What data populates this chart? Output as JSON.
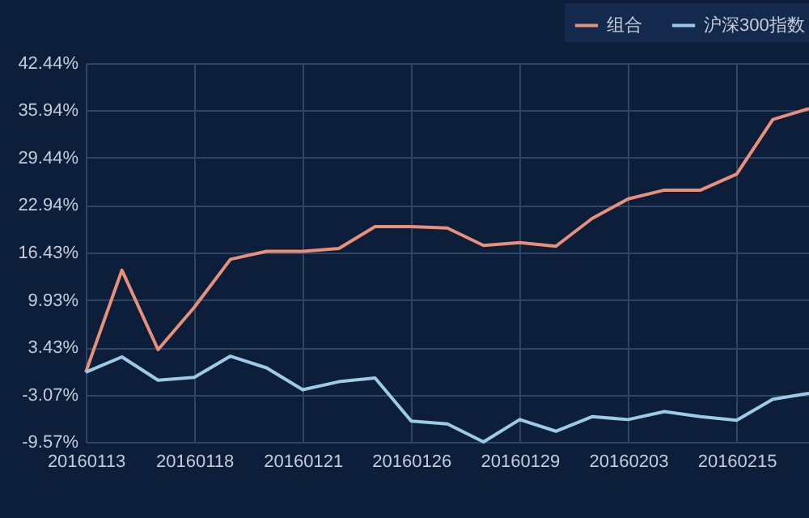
{
  "chart_data": {
    "type": "line",
    "categories": [
      "20160113",
      null,
      null,
      "20160118",
      null,
      null,
      "20160121",
      null,
      null,
      "20160126",
      null,
      null,
      "20160129",
      null,
      null,
      "20160203",
      null,
      null,
      "20160215",
      null,
      null
    ],
    "series": [
      {
        "name": "组合",
        "color": "#e8907a",
        "values": [
          0,
          14.0,
          3.1,
          8.9,
          15.5,
          16.6,
          16.6,
          17.0,
          20.0,
          20.0,
          19.8,
          17.4,
          17.8,
          17.3,
          21.1,
          23.8,
          25.0,
          25.0,
          27.2,
          34.7,
          36.2
        ]
      },
      {
        "name": "沪深300指数",
        "color": "#9ccbe8",
        "values": [
          0,
          2.1,
          -1.1,
          -0.7,
          2.2,
          0.6,
          -2.4,
          -1.3,
          -0.8,
          -6.7,
          -7.1,
          -9.57,
          -6.5,
          -8.1,
          -6.1,
          -6.5,
          -5.4,
          -6.1,
          -6.6,
          -3.7,
          -2.9
        ]
      }
    ],
    "ylim": [
      -9.57,
      42.44
    ],
    "yticks": [
      {
        "value": -9.57,
        "label": "-9.57%"
      },
      {
        "value": -3.07,
        "label": "-3.07%"
      },
      {
        "value": 3.43,
        "label": "3.43%"
      },
      {
        "value": 9.93,
        "label": "9.93%"
      },
      {
        "value": 16.43,
        "label": "16.43%"
      },
      {
        "value": 22.94,
        "label": "22.94%"
      },
      {
        "value": 29.44,
        "label": "29.44%"
      },
      {
        "value": 35.94,
        "label": "35.94%"
      },
      {
        "value": 42.44,
        "label": "42.44%"
      }
    ],
    "grid": true,
    "legend": "top right",
    "marker": "none",
    "line_style": "solid"
  }
}
